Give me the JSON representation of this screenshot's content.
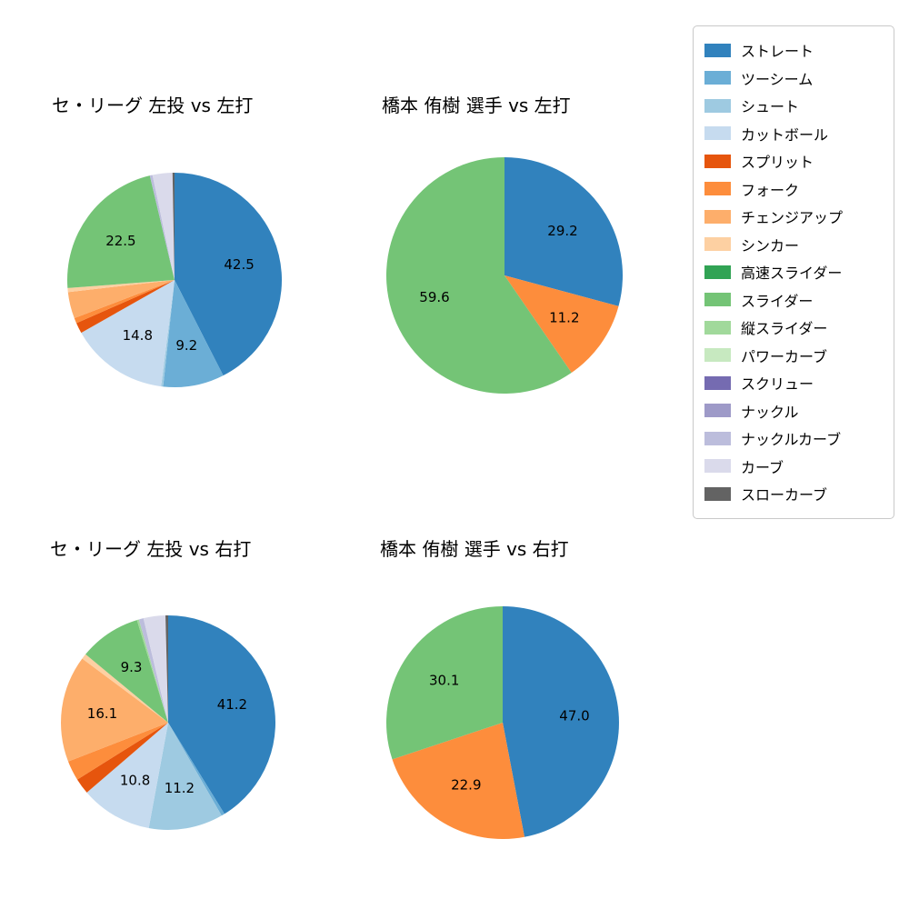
{
  "chart_data": [
    {
      "type": "pie",
      "title": "セ・リーグ 左投 vs 左打",
      "categories": [
        "ストレート",
        "ツーシーム",
        "シュート",
        "カットボール",
        "スプリット",
        "フォーク",
        "チェンジアップ",
        "シンカー",
        "スライダー",
        "ナックルカーブ",
        "カーブ",
        "スローカーブ"
      ],
      "values": [
        42.5,
        9.2,
        0.3,
        14.8,
        1.6,
        0.8,
        4.0,
        0.6,
        22.5,
        0.4,
        3.0,
        0.3
      ],
      "labels_shown": [
        "42.5",
        "9.2",
        "14.8",
        "22.5"
      ],
      "label_min_pct": 5,
      "start_angle": "12-oclock",
      "direction": "clockwise"
    },
    {
      "type": "pie",
      "title": "橋本 侑樹 選手 vs 左打",
      "categories": [
        "ストレート",
        "フォーク",
        "スライダー"
      ],
      "values": [
        29.2,
        11.2,
        59.6
      ],
      "labels_shown": [
        "29.2",
        "11.2",
        "59.6"
      ],
      "label_min_pct": 5,
      "start_angle": "12-oclock",
      "direction": "clockwise"
    },
    {
      "type": "pie",
      "title": "セ・リーグ 左投 vs 右打",
      "categories": [
        "ストレート",
        "ツーシーム",
        "シュート",
        "カットボール",
        "スプリット",
        "フォーク",
        "チェンジアップ",
        "シンカー",
        "スライダー",
        "縦スライダー",
        "ナックルカーブ",
        "カーブ",
        "スローカーブ"
      ],
      "values": [
        41.2,
        0.5,
        11.2,
        10.8,
        2.4,
        3.0,
        16.1,
        0.8,
        9.3,
        0.3,
        0.7,
        3.3,
        0.4
      ],
      "labels_shown": [
        "41.2",
        "11.2",
        "10.8",
        "16.1",
        "9.3"
      ],
      "label_min_pct": 5,
      "start_angle": "12-oclock",
      "direction": "clockwise"
    },
    {
      "type": "pie",
      "title": "橋本 侑樹 選手 vs 右打",
      "categories": [
        "ストレート",
        "フォーク",
        "スライダー"
      ],
      "values": [
        47.0,
        22.9,
        30.1
      ],
      "labels_shown": [
        "47.0",
        "22.9",
        "30.1"
      ],
      "label_min_pct": 5,
      "start_angle": "12-oclock",
      "direction": "clockwise"
    }
  ],
  "palette": {
    "ストレート": "#3182bd",
    "ツーシーム": "#6baed6",
    "シュート": "#9ecae1",
    "カットボール": "#c6dbef",
    "スプリット": "#e6550d",
    "フォーク": "#fd8d3c",
    "チェンジアップ": "#fdae6b",
    "シンカー": "#fdd0a2",
    "高速スライダー": "#31a354",
    "スライダー": "#74c476",
    "縦スライダー": "#a1d99b",
    "パワーカーブ": "#c7e9c0",
    "スクリュー": "#756bb1",
    "ナックル": "#9e9ac8",
    "ナックルカーブ": "#bcbddc",
    "カーブ": "#dadaeb",
    "スローカーブ": "#636363"
  },
  "legend": {
    "position": "upper right",
    "items": [
      {
        "label": "ストレート",
        "color": "#3182bd"
      },
      {
        "label": "ツーシーム",
        "color": "#6baed6"
      },
      {
        "label": "シュート",
        "color": "#9ecae1"
      },
      {
        "label": "カットボール",
        "color": "#c6dbef"
      },
      {
        "label": "スプリット",
        "color": "#e6550d"
      },
      {
        "label": "フォーク",
        "color": "#fd8d3c"
      },
      {
        "label": "チェンジアップ",
        "color": "#fdae6b"
      },
      {
        "label": "シンカー",
        "color": "#fdd0a2"
      },
      {
        "label": "高速スライダー",
        "color": "#31a354"
      },
      {
        "label": "スライダー",
        "color": "#74c476"
      },
      {
        "label": "縦スライダー",
        "color": "#a1d99b"
      },
      {
        "label": "パワーカーブ",
        "color": "#c7e9c0"
      },
      {
        "label": "スクリュー",
        "color": "#756bb1"
      },
      {
        "label": "ナックル",
        "color": "#9e9ac8"
      },
      {
        "label": "ナックルカーブ",
        "color": "#bcbddc"
      },
      {
        "label": "カーブ",
        "color": "#dadaeb"
      },
      {
        "label": "スローカーブ",
        "color": "#636363"
      }
    ]
  }
}
